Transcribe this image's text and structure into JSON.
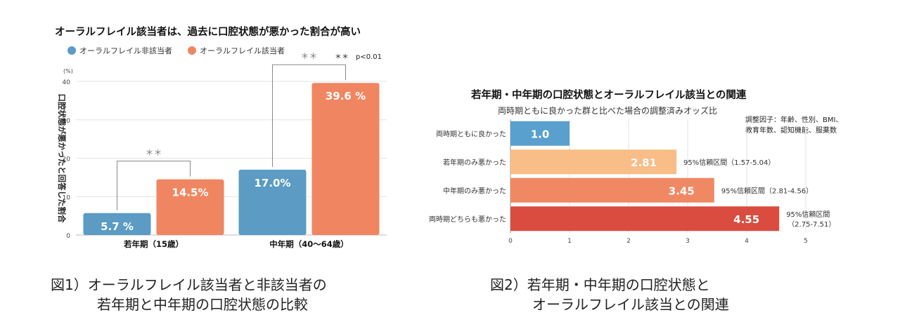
{
  "figure1": {
    "title": "オーラルフレイル該当者は、過去に口腔状態が悪かった割合が高い",
    "legend": [
      "オーラルフレイル非該当者",
      "オーラルフレイル該当者"
    ],
    "significance_note": "＊＊　p<0.01",
    "caption_line1": "図1）オーラルフレイル該当者と非該当者の",
    "caption_line2": "若年期と中年期の口腔状態の比較",
    "colors": {
      "non": "#5b9bc4",
      "yes": "#f08661"
    },
    "chart_data": {
      "type": "bar",
      "title": "オーラルフレイル該当者は、過去に口腔状態が悪かった割合が高い",
      "ylabel": "口腔状態が悪かったと回答した割合",
      "yunit": "(%)",
      "ylim": [
        0,
        40
      ],
      "yticks": [
        "0",
        "10",
        "20",
        "30",
        "40"
      ],
      "categories": [
        "若年期（15歳）",
        "中年期（40〜64歳）"
      ],
      "series": [
        {
          "name": "オーラルフレイル非該当者",
          "values": [
            5.7,
            17.0
          ],
          "labels": [
            "5.7 %",
            "17.0%"
          ]
        },
        {
          "name": "オーラルフレイル該当者",
          "values": [
            14.5,
            39.6
          ],
          "labels": [
            "14.5%",
            "39.6 %"
          ]
        }
      ],
      "significance": [
        "＊＊",
        "＊＊"
      ],
      "grid": true
    }
  },
  "figure2": {
    "title": "若年期・中年期の口腔状態とオーラルフレイル該当との関連",
    "subtitle": "両時期ともに良かった群と比べた場合の調整済みオッズ比",
    "factors_line1": "調整因子：年齢、性別、BMI、",
    "factors_line2": "教育年数、認知機能、服薬数",
    "caption_line1": "図2）若年期・中年期の口腔状態と",
    "caption_line2": "オーラルフレイル該当との関連",
    "colors": [
      "#5aa0cf",
      "#f9bd87",
      "#f08863",
      "#d94c3f"
    ],
    "chart_data": {
      "type": "bar",
      "orientation": "horizontal",
      "title": "若年期・中年期の口腔状態とオーラルフレイル該当との関連",
      "categories": [
        "両時期ともに良かった",
        "若年期のみ悪かった",
        "中年期のみ悪かった",
        "両時期どちらも悪かった"
      ],
      "values": [
        1.0,
        2.81,
        3.45,
        4.55
      ],
      "value_labels": [
        "1.0",
        "2.81",
        "3.45",
        "4.55"
      ],
      "ci_labels": [
        "",
        "95%信頼区間（1.57-5.04）",
        "95%信頼区間（2.81-4.56）",
        "95%信頼区間"
      ],
      "ci_extra": [
        "",
        "",
        "",
        "（2.75-7.51）"
      ],
      "xlim": [
        0,
        5
      ],
      "xticks": [
        "0",
        "1",
        "2",
        "3",
        "4",
        "5"
      ],
      "grid": true
    }
  }
}
